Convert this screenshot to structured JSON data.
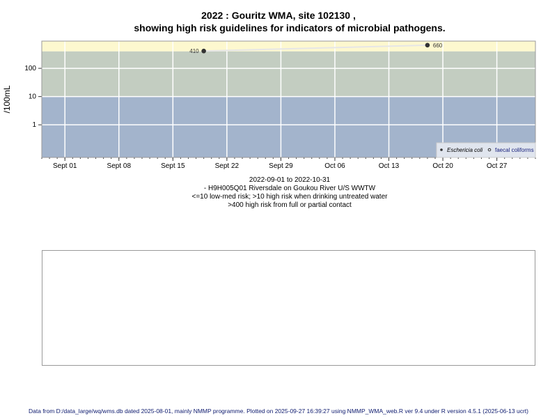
{
  "title_line1": "2022 : Gouritz WMA, site 102130 ,",
  "title_line2": "showing high risk guidelines for indicators of microbial pathogens.",
  "subtitle": [
    "2022-09-01 to 2022-10-31",
    "- H9H005Q01 Riversdale on Goukou River U/S WWTW",
    "<=10 low-med risk; >10 high risk when drinking untreated water",
    ">400 high risk from full or partial contact"
  ],
  "footer": "Data from D:/data_large/wq/wms.db dated 2025-08-01, mainly NMMP programme. Plotted on 2025-09-27 16:39:27 using NMMP_WMA_web.R ver 9.4 under R version 4.5.1 (2025-06-13 ucrt)",
  "chart_data": {
    "type": "scatter",
    "ylabel": "/100mL",
    "yscale": "log",
    "ylim": [
      0.07,
      920
    ],
    "xlim": [
      "2022-08-29",
      "2022-11-01"
    ],
    "x_ticks": [
      {
        "date": "2022-09-01",
        "label": "Sept 01"
      },
      {
        "date": "2022-09-08",
        "label": "Sept 08"
      },
      {
        "date": "2022-09-15",
        "label": "Sept 15"
      },
      {
        "date": "2022-09-22",
        "label": "Sept 22"
      },
      {
        "date": "2022-09-29",
        "label": "Sept 29"
      },
      {
        "date": "2022-10-06",
        "label": "Oct 06"
      },
      {
        "date": "2022-10-13",
        "label": "Oct 13"
      },
      {
        "date": "2022-10-20",
        "label": "Oct 20"
      },
      {
        "date": "2022-10-27",
        "label": "Oct 27"
      }
    ],
    "y_ticks": [
      {
        "value": 1,
        "label": "1"
      },
      {
        "value": 10,
        "label": "10"
      },
      {
        "value": 100,
        "label": "100"
      }
    ],
    "bands": [
      {
        "from": 0.07,
        "to": 10,
        "color": "#a3b4cc"
      },
      {
        "from": 10,
        "to": 400,
        "color": "#c3cdc1"
      },
      {
        "from": 400,
        "to": 920,
        "color": "#fdf8cf"
      }
    ],
    "grid": true,
    "legend_position": "bottom-right",
    "series": [
      {
        "name": "Eschericia coli",
        "marker": "filled",
        "color": "#333333",
        "points": [
          {
            "x": "2022-09-19",
            "y": 410,
            "label": "410"
          },
          {
            "x": "2022-10-18",
            "y": 660,
            "label": "660"
          }
        ]
      },
      {
        "name": "faecal coliforms",
        "marker": "open",
        "color": "#333333",
        "points": []
      }
    ]
  }
}
